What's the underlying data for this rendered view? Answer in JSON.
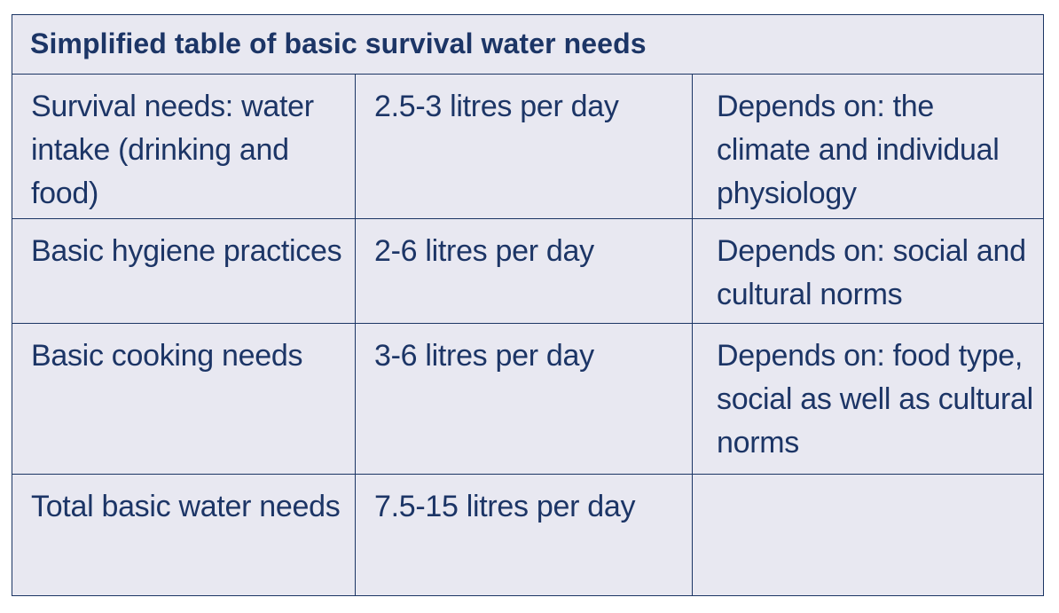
{
  "table": {
    "title": "Simplified table of basic survival water needs",
    "rows": [
      {
        "need": "Survival needs: water intake (drinking and food)",
        "amount": "2.5-3 litres per day",
        "depends": "Depends on: the climate and individual physiology"
      },
      {
        "need": "Basic hygiene practices",
        "amount": "2-6 litres per day",
        "depends": "Depends on: social and cultural norms"
      },
      {
        "need": "Basic cooking needs",
        "amount": "3-6 litres per day",
        "depends": "Depends on: food type, social as well as cultural norms"
      },
      {
        "need": "Total basic water needs",
        "amount": "7.5-15 litres per day",
        "depends": ""
      }
    ]
  },
  "colors": {
    "border": "#1b3564",
    "text": "#1c3566",
    "background": "#e8e8f1"
  }
}
